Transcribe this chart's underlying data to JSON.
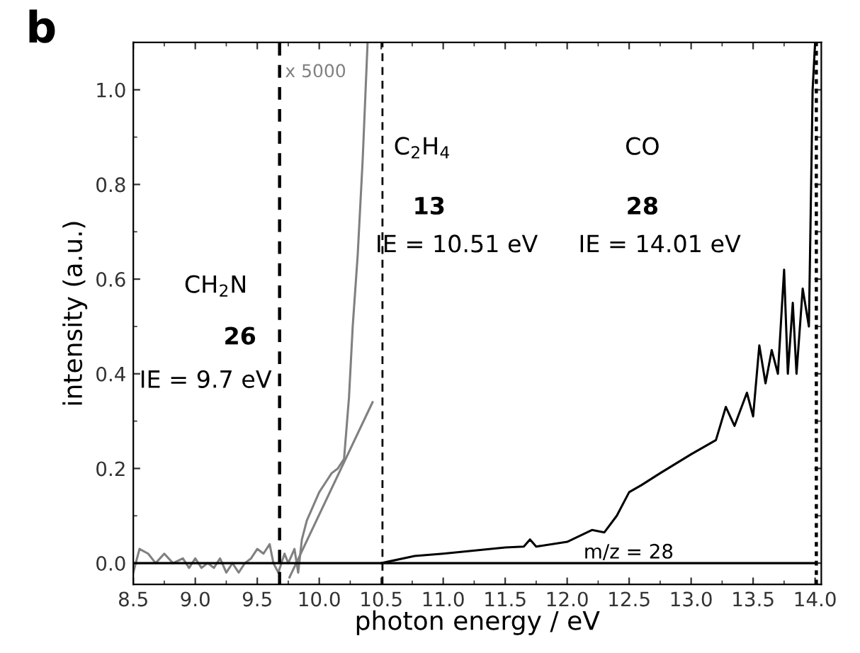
{
  "chart_data": {
    "type": "line",
    "title": "b",
    "xlabel": "photon energy / eV",
    "ylabel": "intensity (a.u.)",
    "xlim": [
      8.5,
      14.05
    ],
    "ylim": [
      -0.045,
      1.1
    ],
    "xticks": [
      8.5,
      {
        "value": 9,
        "label": "9.0"
      },
      9.5,
      {
        "value": 10,
        "label": "10.0"
      },
      10.5,
      {
        "value": 11,
        "label": "11.0"
      },
      11.5,
      {
        "value": 12,
        "label": "12.0"
      },
      12.5,
      {
        "value": 13,
        "label": "13.0"
      },
      13.5,
      {
        "value": 14,
        "label": "14.0"
      }
    ],
    "yticks": [
      {
        "value": 0,
        "label": "0.0"
      },
      0.2,
      0.4,
      0.6,
      0.8,
      {
        "value": 1,
        "label": "1.0"
      }
    ],
    "grid": false,
    "legend": false,
    "marker": "none",
    "series": [
      {
        "color": "#808080",
        "x": [
          8.5,
          8.55,
          8.62,
          8.68,
          8.75,
          8.82,
          8.9,
          8.95,
          9.0,
          9.05,
          9.1,
          9.15,
          9.2,
          9.25,
          9.3,
          9.35,
          9.4,
          9.45,
          9.5,
          9.55,
          9.6,
          9.63,
          9.67,
          9.72,
          9.75,
          9.8,
          9.83,
          9.86,
          9.9,
          9.95,
          10.0,
          10.05,
          10.1,
          10.15,
          10.2,
          10.24,
          10.27,
          10.31,
          10.35,
          10.39
        ],
        "values": [
          -0.02,
          0.03,
          0.02,
          0.0,
          0.02,
          0.0,
          0.01,
          -0.01,
          0.01,
          -0.01,
          0.0,
          -0.01,
          0.01,
          -0.02,
          0.0,
          -0.02,
          0.0,
          0.01,
          0.03,
          0.02,
          0.04,
          0.0,
          -0.02,
          0.02,
          0.0,
          0.03,
          -0.02,
          0.05,
          0.09,
          0.12,
          0.15,
          0.17,
          0.19,
          0.2,
          0.22,
          0.35,
          0.5,
          0.65,
          0.85,
          1.1
        ]
      },
      {
        "color": "#808080",
        "x": [
          9.76,
          10.43
        ],
        "values": [
          -0.03,
          0.34
        ]
      },
      {
        "color": "#000000",
        "x": [
          8.5,
          14.0
        ],
        "values": [
          0.0,
          0.0
        ]
      },
      {
        "color": "#000000",
        "x": [
          10.5,
          10.77,
          11.0,
          11.5,
          11.65,
          11.7,
          11.75,
          12.0,
          12.2,
          12.3,
          12.4,
          12.5,
          12.6,
          12.75,
          13.0,
          13.2,
          13.28,
          13.35,
          13.45,
          13.5,
          13.55,
          13.6,
          13.65,
          13.7,
          13.75,
          13.78,
          13.82,
          13.85,
          13.9,
          13.95,
          13.98,
          14.0
        ],
        "values": [
          0.0,
          0.015,
          0.02,
          0.033,
          0.035,
          0.05,
          0.035,
          0.045,
          0.07,
          0.065,
          0.1,
          0.15,
          0.165,
          0.19,
          0.23,
          0.26,
          0.33,
          0.29,
          0.36,
          0.31,
          0.46,
          0.38,
          0.45,
          0.4,
          0.62,
          0.4,
          0.55,
          0.4,
          0.58,
          0.5,
          1.0,
          1.1
        ]
      }
    ],
    "ref_lines": [
      {
        "axis": "x",
        "value": 9.68,
        "color": "#000000",
        "line_style": "dashed"
      },
      {
        "axis": "x",
        "value": 10.51,
        "color": "#000000",
        "line_style": "dashed"
      },
      {
        "axis": "x",
        "value": 14.01,
        "color": "#000000",
        "line_style": "dotted"
      }
    ],
    "annotations": [
      "x 5000",
      "CH$_{2}$N",
      "26",
      "IE = 9.7 eV",
      "C$_{2}$H$_{4}$",
      "13",
      "IE = 10.51 eV",
      "CO",
      "28",
      "IE = 14.01 eV",
      "m/z = 28"
    ]
  }
}
